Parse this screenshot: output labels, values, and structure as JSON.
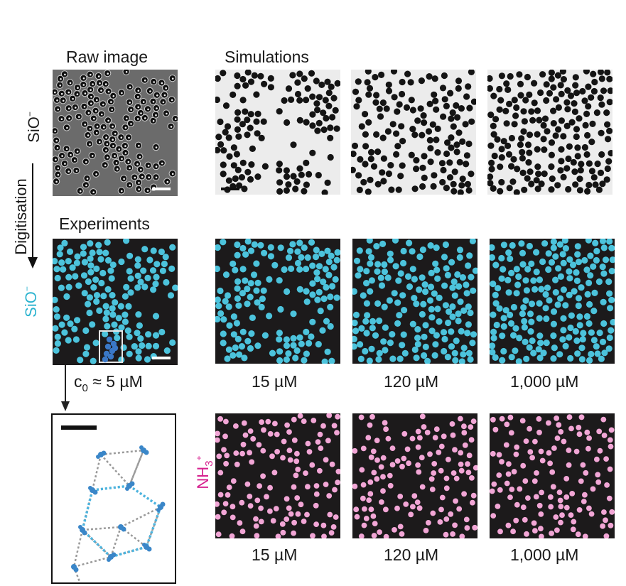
{
  "headings": {
    "raw_image": "Raw image",
    "simulations": "Simulations",
    "experiments": "Experiments"
  },
  "side_labels": {
    "sio_top": "SiO",
    "sio_top_charge": "−",
    "digitisation": "Digitisation",
    "sio_mid": "SiO",
    "sio_mid_charge": "−",
    "nh3_base": "NH",
    "nh3_sub": "3",
    "nh3_charge": "+"
  },
  "concentration_labels": {
    "experiment_prefix": "c",
    "experiment_sub": "0",
    "experiment_value": " ≈ 5 µM",
    "row2": [
      "15 µM",
      "120 µM",
      "1,000 µM"
    ],
    "row3": [
      "15 µM",
      "120 µM",
      "1,000 µM"
    ]
  },
  "colors": {
    "raw_bg": "#6b6b6b",
    "sim_bg": "#ececec",
    "dark_bg": "#1c1a1b",
    "cyan": "#4cc3dc",
    "pink": "#f2a6d6",
    "highlight_blue": "#3a78c7",
    "lattice_dashed_blue": "#4cb5e0",
    "lattice_dashed_grey": "#9a9a9a",
    "magenta_label": "#d6218f",
    "cyan_label": "#2bb3cf"
  },
  "panels": {
    "raw": {
      "style": "raw",
      "density": 0.35,
      "clustered": true
    },
    "sim": [
      {
        "style": "sim",
        "density": 0.3,
        "clustered": true
      },
      {
        "style": "sim",
        "density": 0.35,
        "clustered": "medium"
      },
      {
        "style": "sim",
        "density": 0.45,
        "clustered": false
      }
    ],
    "exp": {
      "style": "cyan",
      "density": 0.35,
      "clustered": true
    },
    "sio": [
      {
        "style": "cyan",
        "density": 0.35,
        "clustered": true
      },
      {
        "style": "cyan",
        "density": 0.4,
        "clustered": "medium"
      },
      {
        "style": "cyan",
        "density": 0.45,
        "clustered": false
      }
    ],
    "nh3": [
      {
        "style": "pink",
        "density": 0.3,
        "clustered": false
      },
      {
        "style": "pink",
        "density": 0.3,
        "clustered": false
      },
      {
        "style": "pink",
        "density": 0.3,
        "clustered": false
      }
    ]
  }
}
